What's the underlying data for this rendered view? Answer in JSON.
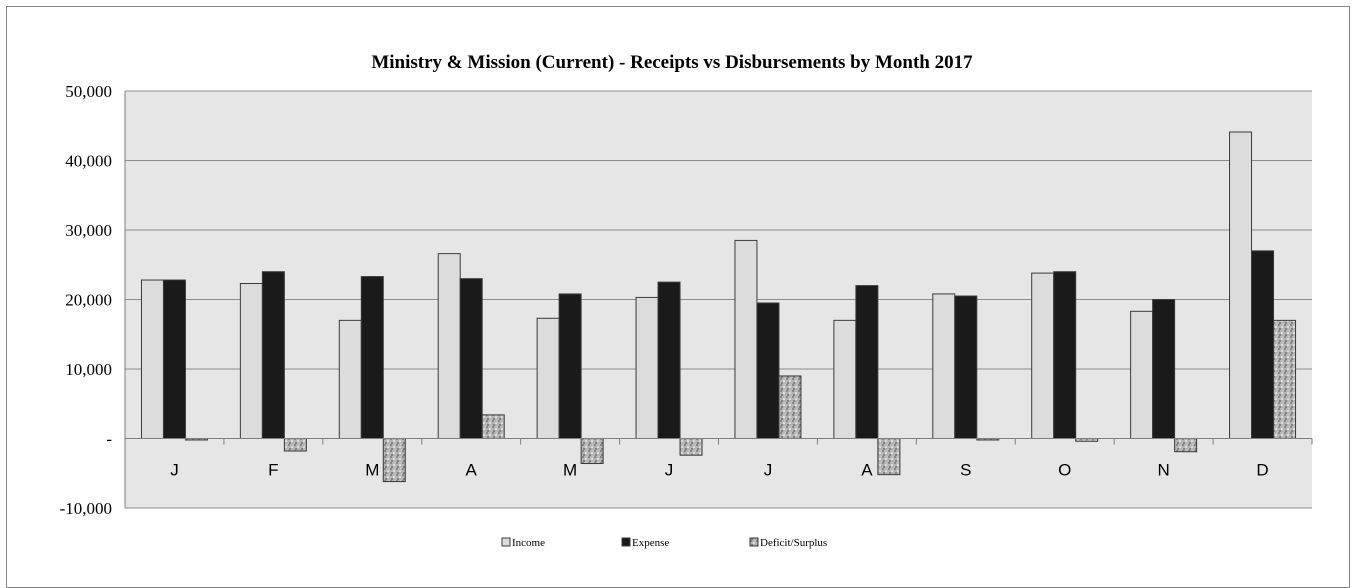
{
  "chart_data": {
    "type": "bar",
    "title": "Ministry & Mission (Current) - Receipts vs Disbursements by Month 2017",
    "categories": [
      "J",
      "F",
      "M",
      "A",
      "M",
      "J",
      "J",
      "A",
      "S",
      "O",
      "N",
      "D"
    ],
    "series": [
      {
        "name": "Income",
        "values": [
          22800,
          22300,
          17000,
          26600,
          17300,
          20300,
          28500,
          17000,
          20800,
          23800,
          18300,
          44100
        ]
      },
      {
        "name": "Expense",
        "values": [
          22800,
          24000,
          23300,
          23000,
          20800,
          22500,
          19500,
          22000,
          20500,
          24000,
          20000,
          27000
        ]
      },
      {
        "name": "Deficit/Surplus",
        "values": [
          -200,
          -1800,
          -6200,
          3400,
          -3600,
          -2400,
          9000,
          -5200,
          -200,
          -400,
          -1900,
          17000
        ]
      }
    ],
    "ylim": [
      -10000,
      50000
    ],
    "yticks": [
      50000,
      40000,
      30000,
      20000,
      10000,
      0,
      -10000
    ],
    "ytick_labels": [
      "50,000",
      "40,000",
      "30,000",
      "20,000",
      "10,000",
      "-",
      "-10,000"
    ],
    "grid": true,
    "legend_position": "bottom",
    "colors": {
      "Income": "#dcdcdc",
      "Expense": "#1a1a1a",
      "Deficit/Surplus": "#a8a8a8",
      "plot_background": "#e6e6e6",
      "gridline": "#8c8c8c"
    }
  }
}
